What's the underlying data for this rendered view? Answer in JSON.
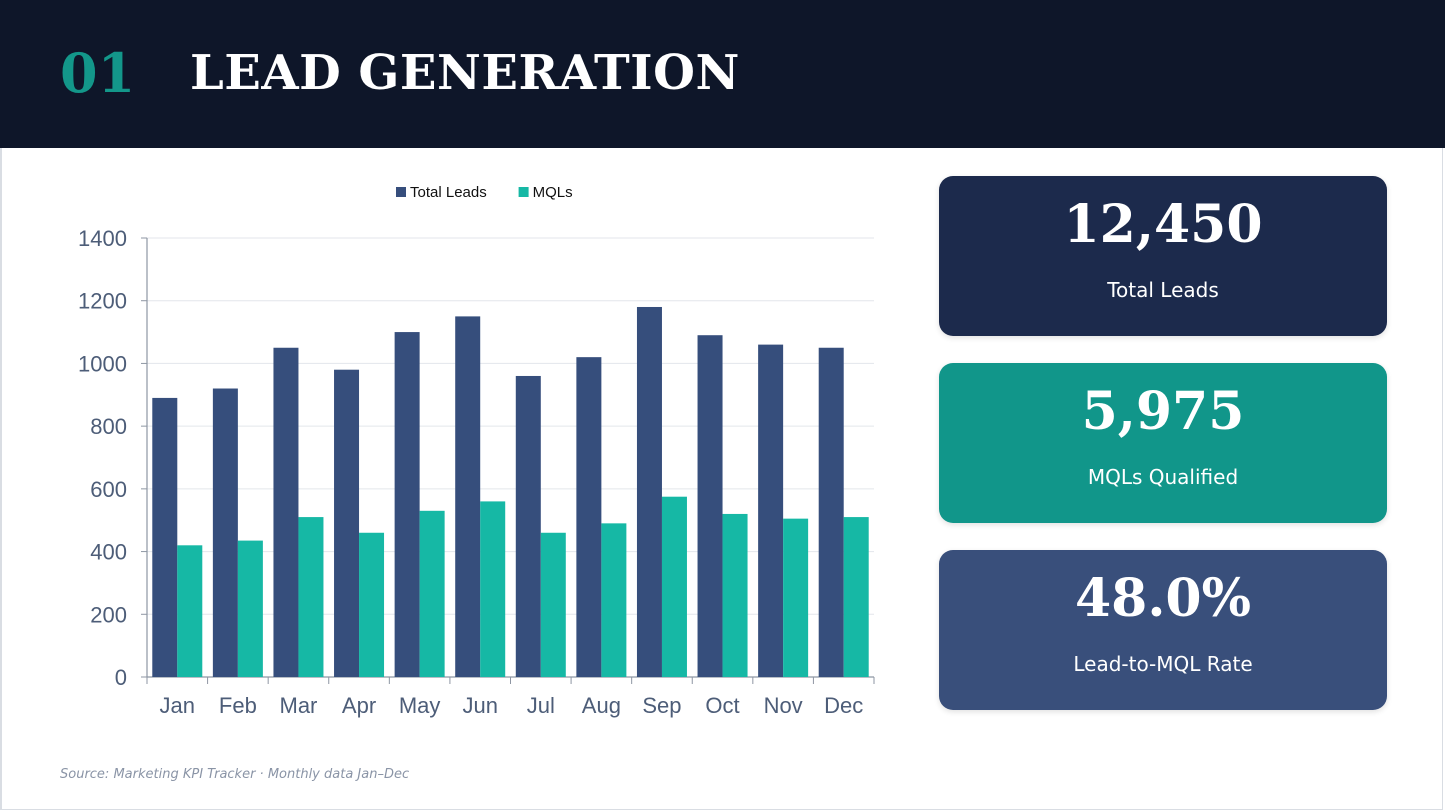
{
  "header": {
    "number": "01",
    "title": "LEAD GENERATION"
  },
  "colors": {
    "header_bg": "#0e1629",
    "accent": "#13978a",
    "total_leads": "#364e7c",
    "mqls": "#16b8a5"
  },
  "chart_data": {
    "type": "bar",
    "categories": [
      "Jan",
      "Feb",
      "Mar",
      "Apr",
      "May",
      "Jun",
      "Jul",
      "Aug",
      "Sep",
      "Oct",
      "Nov",
      "Dec"
    ],
    "series": [
      {
        "name": "Total Leads",
        "color": "#364e7c",
        "values": [
          890,
          920,
          1050,
          980,
          1100,
          1150,
          960,
          1020,
          1180,
          1090,
          1060,
          1050
        ]
      },
      {
        "name": "MQLs",
        "color": "#16b8a5",
        "values": [
          420,
          435,
          510,
          460,
          530,
          560,
          460,
          490,
          575,
          520,
          505,
          510
        ]
      }
    ],
    "yticks": [
      0,
      200,
      400,
      600,
      800,
      1000,
      1200,
      1400
    ],
    "ylim": [
      0,
      1400
    ],
    "grid": true,
    "legend_position": "top-center"
  },
  "kpis": [
    {
      "value": "12,450",
      "label": "Total Leads"
    },
    {
      "value": "5,975",
      "label": "MQLs Qualified"
    },
    {
      "value": "48.0%",
      "label": "Lead-to-MQL Rate"
    }
  ],
  "source": "Source: Marketing KPI Tracker · Monthly data Jan–Dec"
}
